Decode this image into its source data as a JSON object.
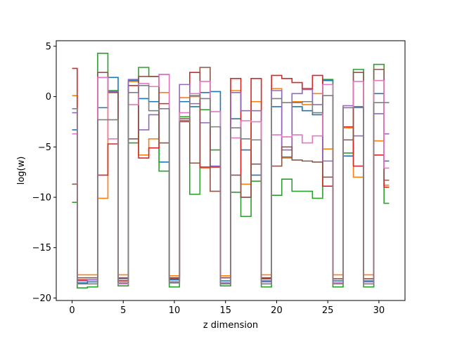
{
  "chart_data": {
    "type": "line",
    "style": "step",
    "xlabel": "z dimension",
    "ylabel": "log(w)",
    "xlim": [
      -1.55,
      32.55
    ],
    "ylim": [
      -20.25,
      5.55
    ],
    "xticks": [
      0,
      5,
      10,
      15,
      20,
      25,
      30
    ],
    "yticks": [
      -20,
      -15,
      -10,
      -5,
      0,
      5
    ],
    "grid": false,
    "legend": "none",
    "x": [
      0,
      1,
      2,
      3,
      4,
      5,
      6,
      7,
      8,
      9,
      10,
      11,
      12,
      13,
      14,
      15,
      16,
      17,
      18,
      19,
      20,
      21,
      22,
      23,
      24,
      25,
      26,
      27,
      28,
      29,
      30,
      31
    ],
    "series": [
      {
        "color": "#1f77b4",
        "values": [
          -3.3,
          -18.5,
          -18.4,
          -1.1,
          1.9,
          -18.3,
          1.6,
          -0.2,
          -0.5,
          -6.5,
          -18.2,
          -0.5,
          -1.0,
          0.4,
          0.5,
          -18.3,
          -2.2,
          -5.3,
          -7.8,
          -18.3,
          -1.0,
          -6.0,
          -1.0,
          -1.4,
          -1.8,
          1.6,
          -18.3,
          -5.9,
          -1.0,
          -18.3,
          0.3,
          -6.4
        ]
      },
      {
        "color": "#ff7f0e",
        "values": [
          0.1,
          -17.7,
          -17.7,
          -10.1,
          0.5,
          -17.7,
          1.5,
          -5.8,
          -4.2,
          0.4,
          -17.8,
          -0.1,
          0.0,
          -7.1,
          -7.0,
          -17.8,
          0.6,
          -8.7,
          -0.5,
          -17.7,
          0.8,
          -6.1,
          -0.5,
          -0.8,
          0.3,
          -5.2,
          -17.7,
          -3.1,
          -8.0,
          -17.7,
          -4.4,
          -8.8
        ]
      },
      {
        "color": "#2ca02c",
        "values": [
          -10.5,
          -19.0,
          -18.9,
          4.3,
          0.6,
          -18.8,
          -4.6,
          2.9,
          2.0,
          -7.4,
          -18.9,
          -2.0,
          -9.7,
          -1.3,
          -5.3,
          -18.8,
          -9.5,
          -11.9,
          -8.4,
          -18.9,
          -9.8,
          -8.2,
          -9.4,
          -9.4,
          -10.1,
          1.7,
          -18.9,
          -5.6,
          2.7,
          -18.9,
          3.2,
          -10.6
        ]
      },
      {
        "color": "#d62728",
        "values": [
          2.8,
          -18.2,
          -18.2,
          -7.8,
          -4.7,
          -18.3,
          1.1,
          -6.1,
          -5.1,
          -0.7,
          -18.0,
          -2.4,
          2.4,
          -7.0,
          -7.0,
          -18.0,
          1.8,
          -10.0,
          1.8,
          -18.0,
          2.1,
          1.8,
          1.4,
          0.8,
          2.1,
          -8.9,
          -18.1,
          -3.0,
          -6.9,
          -18.1,
          -5.8,
          -9.0
        ]
      },
      {
        "color": "#9467bd",
        "values": [
          -1.6,
          -18.3,
          -18.2,
          1.9,
          0.5,
          -18.1,
          1.7,
          -3.3,
          -1.8,
          2.2,
          -18.4,
          1.2,
          -0.7,
          -2.6,
          -6.9,
          -18.5,
          0.4,
          -1.4,
          -1.4,
          -18.4,
          0.6,
          -5.3,
          0.3,
          0.7,
          -0.8,
          -6.4,
          -18.5,
          -0.9,
          -3.9,
          -18.4,
          -1.7,
          -3.7
        ]
      },
      {
        "color": "#8c564b",
        "values": [
          -8.7,
          -18.0,
          -18.0,
          2.4,
          0.4,
          -18.0,
          -4.2,
          2.0,
          2.0,
          -4.6,
          -18.1,
          -2.2,
          -6.6,
          2.9,
          -9.4,
          -18.0,
          -7.8,
          -10.0,
          -6.7,
          -18.1,
          -6.9,
          -5.0,
          -6.3,
          -6.4,
          -6.5,
          -8.0,
          -18.1,
          -4.3,
          2.4,
          -18.1,
          2.7,
          -8.3
        ]
      },
      {
        "color": "#e377c2",
        "values": [
          -3.7,
          -18.6,
          -18.6,
          1.9,
          -4.2,
          -18.6,
          -0.8,
          1.3,
          1.0,
          2.2,
          -18.5,
          -1.6,
          0.3,
          1.5,
          -1.5,
          -18.6,
          -4.1,
          -2.4,
          -2.5,
          -18.6,
          -3.8,
          -4.0,
          -3.8,
          -4.6,
          -3.9,
          1.2,
          -18.5,
          -1.1,
          1.5,
          -18.6,
          1.6,
          -7.1
        ]
      },
      {
        "color": "#7f7f7f",
        "values": [
          -1.2,
          -18.6,
          -18.6,
          -2.3,
          -2.3,
          -18.5,
          0.4,
          1.1,
          -1.4,
          -1.2,
          -18.5,
          -2.5,
          0.1,
          -0.2,
          -3.0,
          -18.6,
          -3.1,
          -4.2,
          -4.3,
          -18.6,
          -0.2,
          -0.6,
          -0.6,
          -0.5,
          -1.6,
          0.1,
          -18.6,
          -1.1,
          -1.1,
          -18.6,
          -0.6,
          -0.6
        ]
      }
    ]
  }
}
